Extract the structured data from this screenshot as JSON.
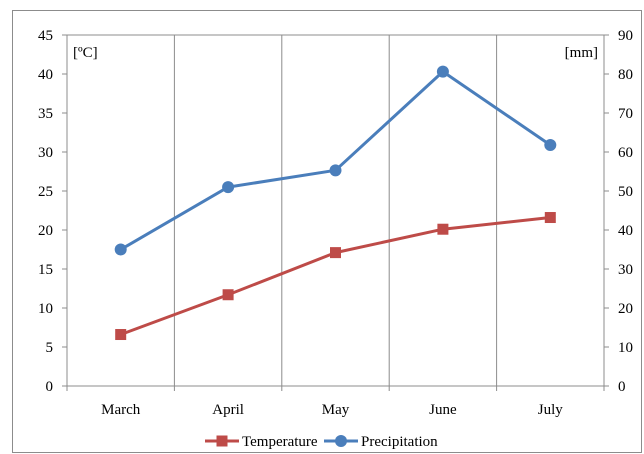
{
  "chart_data": {
    "type": "line",
    "title": "",
    "categories": [
      "March",
      "April",
      "May",
      "June",
      "July"
    ],
    "left_axis": {
      "unit_label": "[ºC]",
      "ylim": [
        0,
        45
      ],
      "ticks": [
        "0",
        "5",
        "10",
        "15",
        "20",
        "25",
        "30",
        "35",
        "40",
        "45"
      ]
    },
    "right_axis": {
      "unit_label": "[mm]",
      "ylim": [
        0,
        90
      ],
      "ticks": [
        "0",
        "10",
        "20",
        "30",
        "40",
        "50",
        "60",
        "70",
        "80",
        "90"
      ]
    },
    "series": [
      {
        "name": "Temperature",
        "axis": "left",
        "color": "#be4b48",
        "marker": "square",
        "values": [
          6.6,
          11.7,
          17.1,
          20.1,
          21.6
        ]
      },
      {
        "name": "Precipitation",
        "axis": "right",
        "color": "#4a7ebb",
        "marker": "circle",
        "values": [
          35,
          51,
          55.3,
          80.6,
          61.8
        ]
      }
    ],
    "grid": "vertical",
    "legend_position": "bottom"
  }
}
